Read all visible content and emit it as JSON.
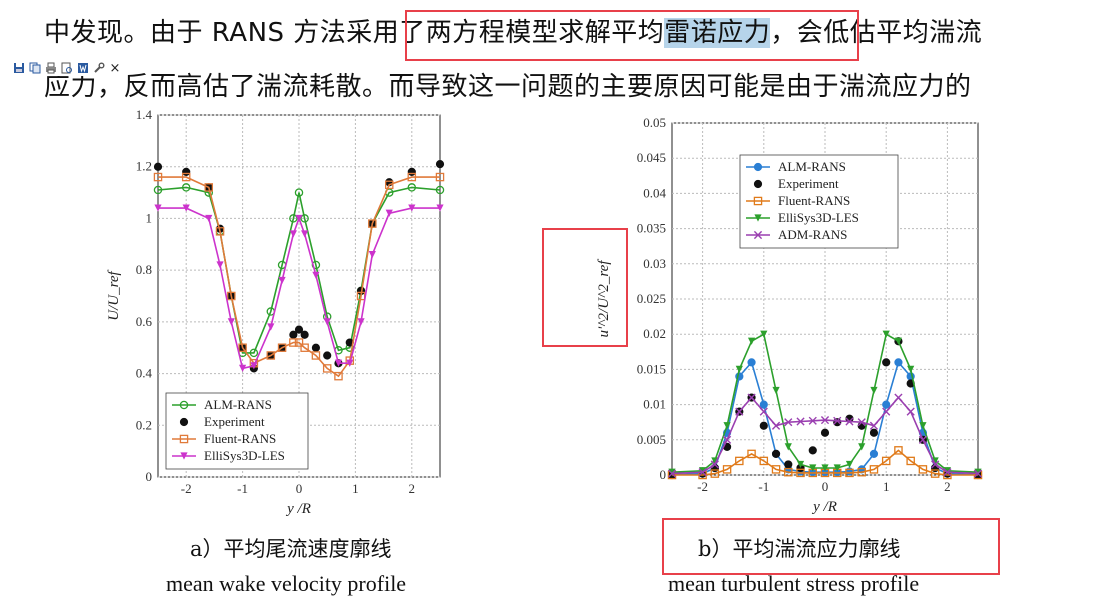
{
  "text": {
    "line1_a": "中发现。由于 RANS 方法采用了两方程模型求解平均",
    "line1_b": "雷诺应力",
    "line1_c": "，会低估平均湍流",
    "line2": "应力，反而高估了湍流耗散。而导致这一问题的主要原因可能是由于湍流应力的"
  },
  "toolbar": {
    "icons": [
      "save-icon",
      "copy-icon",
      "print-icon",
      "print-preview-icon",
      "word-icon",
      "tools-icon",
      "close-icon"
    ]
  },
  "captions": {
    "a_zh": "a）平均尾流速度廓线",
    "a_en": "mean wake velocity profile",
    "b_zh": "b）平均湍流应力廓线",
    "b_en": "mean turbulent stress profile"
  },
  "chart_data": [
    {
      "type": "line",
      "xlabel": "y /R",
      "ylabel": "U/U_ref",
      "xlim": [
        -2.5,
        2.5
      ],
      "ylim": [
        0,
        1.4
      ],
      "xticks": [
        "-2",
        "-1",
        "0",
        "1",
        "2"
      ],
      "yticks": [
        "0",
        "0.2",
        "0.4",
        "0.6",
        "0.8",
        "1",
        "1.2",
        "1.4"
      ],
      "grid": true,
      "legend": "bottom-left",
      "series": [
        {
          "name": "ALM-RANS",
          "color": "#2ca02c",
          "marker": "circle-open",
          "x": [
            -2.5,
            -2.0,
            -1.6,
            -1.4,
            -1.2,
            -1.0,
            -0.8,
            -0.5,
            -0.3,
            -0.1,
            0.0,
            0.1,
            0.3,
            0.5,
            0.7,
            0.9,
            1.1,
            1.3,
            1.6,
            2.0,
            2.5
          ],
          "y": [
            1.11,
            1.12,
            1.1,
            0.95,
            0.7,
            0.48,
            0.48,
            0.64,
            0.82,
            1.0,
            1.1,
            1.0,
            0.82,
            0.62,
            0.49,
            0.5,
            0.72,
            0.98,
            1.1,
            1.12,
            1.11
          ]
        },
        {
          "name": "Experiment",
          "color": "#111111",
          "marker": "circle-filled",
          "x": [
            -2.5,
            -2.0,
            -1.6,
            -1.4,
            -1.2,
            -1.0,
            -0.8,
            -0.5,
            -0.3,
            -0.1,
            0.0,
            0.1,
            0.3,
            0.5,
            0.7,
            0.9,
            1.1,
            1.3,
            1.6,
            2.0,
            2.5
          ],
          "y": [
            1.2,
            1.18,
            1.12,
            0.96,
            0.7,
            0.5,
            0.42,
            0.47,
            0.5,
            0.55,
            0.57,
            0.55,
            0.5,
            0.47,
            0.44,
            0.52,
            0.72,
            0.98,
            1.14,
            1.18,
            1.21
          ]
        },
        {
          "name": "Fluent-RANS",
          "color": "#e07a3a",
          "marker": "square-open",
          "x": [
            -2.5,
            -2.0,
            -1.6,
            -1.4,
            -1.2,
            -1.0,
            -0.8,
            -0.5,
            -0.3,
            -0.1,
            0.0,
            0.1,
            0.3,
            0.5,
            0.7,
            0.9,
            1.1,
            1.3,
            1.6,
            2.0,
            2.5
          ],
          "y": [
            1.16,
            1.16,
            1.12,
            0.95,
            0.7,
            0.5,
            0.44,
            0.47,
            0.5,
            0.52,
            0.52,
            0.5,
            0.47,
            0.42,
            0.39,
            0.45,
            0.7,
            0.98,
            1.13,
            1.16,
            1.16
          ]
        },
        {
          "name": "ElliSys3D-LES",
          "color": "#cc33cc",
          "marker": "triangle-down",
          "x": [
            -2.5,
            -2.0,
            -1.6,
            -1.4,
            -1.2,
            -1.0,
            -0.8,
            -0.5,
            -0.3,
            -0.1,
            0.0,
            0.1,
            0.3,
            0.5,
            0.7,
            0.9,
            1.1,
            1.3,
            1.6,
            2.0,
            2.5
          ],
          "y": [
            1.04,
            1.04,
            1.0,
            0.82,
            0.6,
            0.42,
            0.43,
            0.58,
            0.76,
            0.94,
            1.0,
            0.94,
            0.78,
            0.6,
            0.44,
            0.44,
            0.6,
            0.86,
            1.02,
            1.04,
            1.04
          ]
        }
      ]
    },
    {
      "type": "line",
      "xlabel": "y /R",
      "ylabel": "u'^2/U^2_ref",
      "xlim": [
        -2.5,
        2.5
      ],
      "ylim": [
        0,
        0.05
      ],
      "xticks": [
        "-2",
        "-1",
        "0",
        "1",
        "2"
      ],
      "yticks": [
        "0",
        "0.005",
        "0.01",
        "0.015",
        "0.02",
        "0.025",
        "0.03",
        "0.035",
        "0.04",
        "0.045",
        "0.05"
      ],
      "grid": true,
      "legend": "top-left",
      "series": [
        {
          "name": "ALM-RANS",
          "color": "#2a7fd4",
          "marker": "circle-filled",
          "x": [
            -2.5,
            -2.0,
            -1.8,
            -1.6,
            -1.4,
            -1.2,
            -1.0,
            -0.8,
            -0.6,
            -0.4,
            -0.2,
            0.0,
            0.2,
            0.4,
            0.6,
            0.8,
            1.0,
            1.2,
            1.4,
            1.6,
            1.8,
            2.0,
            2.5
          ],
          "y": [
            0.0,
            0.0002,
            0.001,
            0.006,
            0.014,
            0.016,
            0.01,
            0.003,
            0.0008,
            0.0005,
            0.0004,
            0.0004,
            0.0004,
            0.0005,
            0.0008,
            0.003,
            0.01,
            0.016,
            0.014,
            0.006,
            0.001,
            0.0002,
            0.0
          ]
        },
        {
          "name": "Experiment",
          "color": "#111111",
          "marker": "circle-filled",
          "x": [
            -2.5,
            -2.0,
            -1.8,
            -1.6,
            -1.4,
            -1.2,
            -1.0,
            -0.8,
            -0.6,
            -0.4,
            -0.2,
            0.0,
            0.2,
            0.4,
            0.6,
            0.8,
            1.0,
            1.2,
            1.4,
            1.6,
            1.8,
            2.0,
            2.5
          ],
          "y": [
            0.0,
            0.0002,
            0.001,
            0.004,
            0.009,
            0.011,
            0.007,
            0.003,
            0.0015,
            0.001,
            0.0035,
            0.006,
            0.0075,
            0.008,
            0.007,
            0.006,
            0.016,
            0.019,
            0.013,
            0.005,
            0.001,
            0.0002,
            0.0
          ]
        },
        {
          "name": "Fluent-RANS",
          "color": "#e07a1a",
          "marker": "square-open",
          "x": [
            -2.5,
            -2.0,
            -1.8,
            -1.6,
            -1.4,
            -1.2,
            -1.0,
            -0.8,
            -0.6,
            -0.4,
            -0.2,
            0.0,
            0.2,
            0.4,
            0.6,
            0.8,
            1.0,
            1.2,
            1.4,
            1.6,
            1.8,
            2.0,
            2.5
          ],
          "y": [
            0.0,
            0.0,
            0.0002,
            0.0008,
            0.002,
            0.003,
            0.002,
            0.0008,
            0.0004,
            0.0003,
            0.0003,
            0.0003,
            0.0003,
            0.0003,
            0.0004,
            0.0008,
            0.002,
            0.0035,
            0.002,
            0.0008,
            0.0002,
            0.0,
            0.0
          ]
        },
        {
          "name": "ElliSys3D-LES",
          "color": "#2ca02c",
          "marker": "triangle-down",
          "x": [
            -2.5,
            -2.0,
            -1.8,
            -1.6,
            -1.4,
            -1.2,
            -1.0,
            -0.8,
            -0.6,
            -0.4,
            -0.2,
            0.0,
            0.2,
            0.4,
            0.6,
            0.8,
            1.0,
            1.2,
            1.4,
            1.6,
            1.8,
            2.0,
            2.5
          ],
          "y": [
            0.0004,
            0.0006,
            0.002,
            0.007,
            0.015,
            0.019,
            0.02,
            0.012,
            0.004,
            0.0015,
            0.001,
            0.001,
            0.001,
            0.0015,
            0.004,
            0.012,
            0.02,
            0.019,
            0.015,
            0.007,
            0.002,
            0.0006,
            0.0004
          ]
        },
        {
          "name": "ADM-RANS",
          "color": "#9a3fb0",
          "marker": "x",
          "x": [
            -2.5,
            -2.0,
            -1.8,
            -1.6,
            -1.4,
            -1.2,
            -1.0,
            -0.8,
            -0.6,
            -0.4,
            -0.2,
            0.0,
            0.2,
            0.4,
            0.6,
            0.8,
            1.0,
            1.2,
            1.4,
            1.6,
            1.8,
            2.0,
            2.5
          ],
          "y": [
            0.0002,
            0.0004,
            0.0015,
            0.005,
            0.009,
            0.011,
            0.009,
            0.007,
            0.0075,
            0.0076,
            0.0077,
            0.0078,
            0.0077,
            0.0076,
            0.0075,
            0.007,
            0.009,
            0.011,
            0.009,
            0.005,
            0.0015,
            0.0004,
            0.0002
          ]
        }
      ]
    }
  ]
}
